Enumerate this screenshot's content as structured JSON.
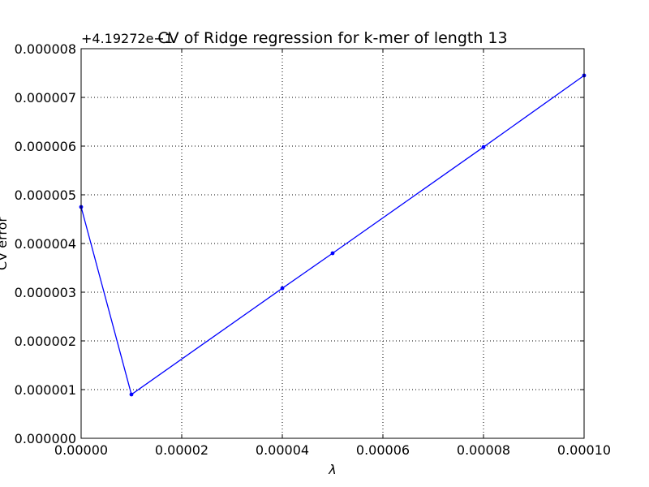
{
  "chart_data": {
    "type": "line",
    "title": "CV of Ridge regression for k-mer of length 13",
    "xlabel": "λ",
    "ylabel": "CV error",
    "y_offset_label": "+4.19272e−1",
    "x_ticks": [
      "0.00000",
      "0.00002",
      "0.00004",
      "0.00006",
      "0.00008",
      "0.00010"
    ],
    "x_tick_values": [
      0,
      2e-05,
      4e-05,
      6e-05,
      8e-05,
      0.0001
    ],
    "y_ticks": [
      "0.000000",
      "0.000001",
      "0.000002",
      "0.000003",
      "0.000004",
      "0.000005",
      "0.000006",
      "0.000007",
      "0.000008"
    ],
    "y_tick_values": [
      0,
      1e-06,
      2e-06,
      3e-06,
      4e-06,
      5e-06,
      6e-06,
      7e-06,
      8e-06
    ],
    "xlim": [
      0,
      0.0001
    ],
    "ylim": [
      0,
      8e-06
    ],
    "grid": true,
    "series": [
      {
        "color": "#0000ff",
        "x": [
          0,
          1e-05,
          4e-05,
          5e-05,
          8e-05,
          0.0001
        ],
        "y": [
          4.75e-06,
          9e-07,
          3.08e-06,
          3.8e-06,
          5.98e-06,
          7.45e-06
        ]
      }
    ]
  }
}
